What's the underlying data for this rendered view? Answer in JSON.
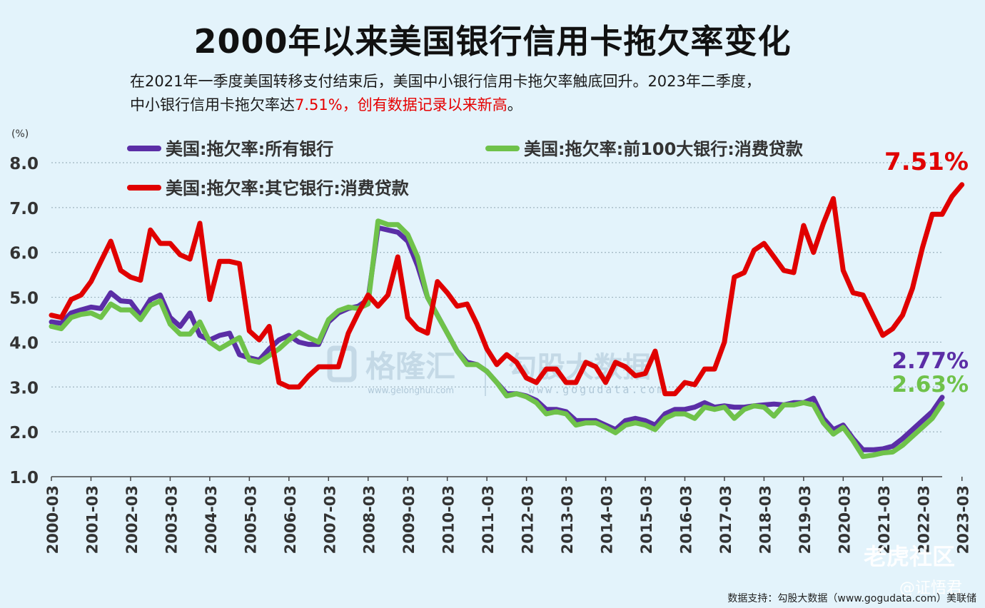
{
  "title": "2000年以来美国银行信用卡拖欠率变化",
  "subtitle_line1": "在2021年一季度美国转移支付结束后，美国中小银行信用卡拖欠率触底回升。2023年二季度，",
  "subtitle_line2_prefix": "中小银行信用卡拖欠率达",
  "subtitle_line2_highlight": "7.51%，创有数据记录以来新高",
  "subtitle_line2_suffix": "。",
  "footer": "数据支持：勾股大数据（www.gogudata.com）美联储",
  "watermarks": {
    "gelonghui": "格隆汇",
    "gelonghui_url": "www.gelonghui.com",
    "gogu": "勾股大数据",
    "gogu_url": "www.gogudata.com",
    "tiger": "老虎社区",
    "author": "@证悟君"
  },
  "colors": {
    "all_banks": "#5b2ea6",
    "top100": "#6fc24a",
    "other_banks": "#e00000",
    "background": "#e3f3fb",
    "grid": "#9fb4c0"
  },
  "chart_data": {
    "type": "line",
    "ylabel": "(%)",
    "ylim": [
      1.0,
      8.0
    ],
    "yticks": [
      "8.0",
      "7.0",
      "6.0",
      "5.0",
      "4.0",
      "3.0",
      "2.0",
      "1.0"
    ],
    "x_start_year": 2000,
    "x_tick_labels": [
      "2000-03",
      "2001-03",
      "2002-03",
      "2003-03",
      "2004-03",
      "2005-03",
      "2006-03",
      "2007-03",
      "2008-03",
      "2009-03",
      "2010-03",
      "2011-03",
      "2012-03",
      "2013-03",
      "2014-03",
      "2015-03",
      "2016-03",
      "2017-03",
      "2018-03",
      "2019-03",
      "2020-03",
      "2021-03",
      "2022-03",
      "2023-03"
    ],
    "legend_placement": "top-left",
    "series": [
      {
        "name": "美国:拖欠率:所有银行",
        "color": "#5b2ea6",
        "end_label": "2.77%",
        "values": [
          4.45,
          4.42,
          4.65,
          4.72,
          4.78,
          4.75,
          5.1,
          4.92,
          4.9,
          4.6,
          4.95,
          5.05,
          4.55,
          4.35,
          4.65,
          4.15,
          4.05,
          4.15,
          4.2,
          3.72,
          3.65,
          3.6,
          3.85,
          4.05,
          4.15,
          4.0,
          3.95,
          3.95,
          4.45,
          4.65,
          4.75,
          4.8,
          4.95,
          6.55,
          6.5,
          6.45,
          6.25,
          5.7,
          5.0,
          4.6,
          4.2,
          3.8,
          3.55,
          3.5,
          3.35,
          3.1,
          2.85,
          2.85,
          2.8,
          2.7,
          2.5,
          2.5,
          2.45,
          2.25,
          2.25,
          2.25,
          2.15,
          2.05,
          2.25,
          2.3,
          2.25,
          2.15,
          2.4,
          2.5,
          2.5,
          2.55,
          2.65,
          2.55,
          2.58,
          2.55,
          2.55,
          2.58,
          2.6,
          2.62,
          2.6,
          2.65,
          2.65,
          2.75,
          2.3,
          2.05,
          2.15,
          1.85,
          1.6,
          1.6,
          1.62,
          1.68,
          1.85,
          2.05,
          2.25,
          2.45,
          2.77
        ]
      },
      {
        "name": "美国:拖欠率:前100大银行:消费贷款",
        "color": "#6fc24a",
        "end_label": "2.63%",
        "values": [
          4.35,
          4.3,
          4.55,
          4.62,
          4.65,
          4.55,
          4.85,
          4.72,
          4.72,
          4.5,
          4.82,
          4.92,
          4.4,
          4.18,
          4.18,
          4.45,
          4.0,
          3.85,
          3.98,
          4.1,
          3.6,
          3.55,
          3.7,
          3.85,
          4.05,
          4.22,
          4.1,
          4.0,
          4.5,
          4.7,
          4.78,
          4.75,
          4.85,
          6.7,
          6.62,
          6.62,
          6.4,
          5.9,
          5.0,
          4.6,
          4.2,
          3.8,
          3.5,
          3.5,
          3.35,
          3.1,
          2.8,
          2.85,
          2.78,
          2.65,
          2.4,
          2.45,
          2.4,
          2.15,
          2.2,
          2.2,
          2.1,
          1.98,
          2.15,
          2.2,
          2.15,
          2.05,
          2.3,
          2.4,
          2.4,
          2.3,
          2.55,
          2.5,
          2.55,
          2.3,
          2.5,
          2.58,
          2.55,
          2.35,
          2.6,
          2.6,
          2.65,
          2.6,
          2.2,
          1.95,
          2.1,
          1.8,
          1.45,
          1.48,
          1.53,
          1.55,
          1.7,
          1.9,
          2.1,
          2.3,
          2.63
        ]
      },
      {
        "name": "美国:拖欠率:其它银行:消费贷款",
        "color": "#e00000",
        "end_label": "7.51%",
        "values": [
          4.6,
          4.55,
          4.95,
          5.05,
          5.35,
          5.8,
          6.25,
          5.6,
          5.45,
          5.38,
          6.5,
          6.2,
          6.2,
          5.95,
          5.85,
          6.65,
          4.95,
          5.8,
          5.8,
          5.75,
          4.25,
          4.05,
          4.35,
          3.1,
          3.0,
          3.0,
          3.25,
          3.45,
          3.45,
          3.45,
          4.2,
          4.65,
          5.05,
          4.8,
          5.05,
          5.9,
          4.55,
          4.3,
          4.2,
          5.35,
          5.1,
          4.8,
          4.85,
          4.4,
          3.85,
          3.5,
          3.72,
          3.55,
          3.2,
          3.1,
          3.4,
          3.4,
          3.1,
          3.1,
          3.55,
          3.45,
          3.1,
          3.55,
          3.45,
          3.25,
          3.3,
          3.8,
          2.85,
          2.85,
          3.1,
          3.05,
          3.4,
          3.4,
          4.0,
          5.45,
          5.55,
          6.05,
          6.2,
          5.9,
          5.6,
          5.55,
          6.6,
          6.0,
          6.65,
          7.2,
          5.6,
          5.1,
          5.05,
          4.6,
          4.15,
          4.3,
          4.6,
          5.2,
          6.1,
          6.85,
          6.85,
          7.25,
          7.51
        ]
      }
    ]
  }
}
